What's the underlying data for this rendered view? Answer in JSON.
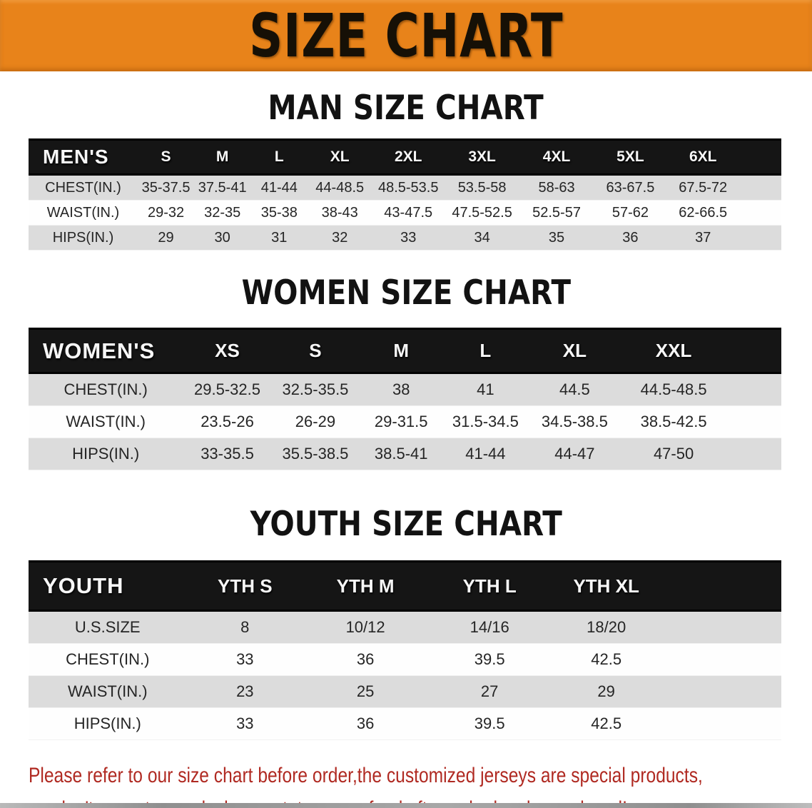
{
  "banner": {
    "title": "SIZE CHART"
  },
  "sections": [
    {
      "heading": "MAN SIZE CHART",
      "table": {
        "header": [
          "MEN'S",
          "S",
          "M",
          "L",
          "XL",
          "2XL",
          "3XL",
          "4XL",
          "5XL",
          "6XL"
        ],
        "rows": [
          {
            "label": "CHEST(IN.)",
            "values": [
              "35-37.5",
              "37.5-41",
              "41-44",
              "44-48.5",
              "48.5-53.5",
              "53.5-58",
              "58-63",
              "63-67.5",
              "67.5-72"
            ]
          },
          {
            "label": "WAIST(IN.)",
            "values": [
              "29-32",
              "32-35",
              "35-38",
              "38-43",
              "43-47.5",
              "47.5-52.5",
              "52.5-57",
              "57-62",
              "62-66.5"
            ]
          },
          {
            "label": "HIPS(IN.)",
            "values": [
              "29",
              "30",
              "31",
              "32",
              "33",
              "34",
              "35",
              "36",
              "37"
            ]
          }
        ]
      }
    },
    {
      "heading": "WOMEN SIZE CHART",
      "table": {
        "header": [
          "WOMEN'S",
          "XS",
          "S",
          "M",
          "L",
          "XL",
          "XXL"
        ],
        "rows": [
          {
            "label": "CHEST(IN.)",
            "values": [
              "29.5-32.5",
              "32.5-35.5",
              "38",
              "41",
              "44.5",
              "44.5-48.5"
            ]
          },
          {
            "label": "WAIST(IN.)",
            "values": [
              "23.5-26",
              "26-29",
              "29-31.5",
              "31.5-34.5",
              "34.5-38.5",
              "38.5-42.5"
            ]
          },
          {
            "label": "HIPS(IN.)",
            "values": [
              "33-35.5",
              "35.5-38.5",
              "38.5-41",
              "41-44",
              "44-47",
              "47-50"
            ]
          }
        ]
      }
    },
    {
      "heading": "YOUTH SIZE CHART",
      "table": {
        "header": [
          "YOUTH",
          "YTH S",
          "YTH M",
          "YTH L",
          "YTH XL"
        ],
        "rows": [
          {
            "label": "U.S.SIZE",
            "values": [
              "8",
              "10/12",
              "14/16",
              "18/20"
            ]
          },
          {
            "label": "CHEST(IN.)",
            "values": [
              "33",
              "36",
              "39.5",
              "42.5"
            ]
          },
          {
            "label": "WAIST(IN.)",
            "values": [
              "23",
              "25",
              "27",
              "29"
            ]
          },
          {
            "label": "HIPS(IN.)",
            "values": [
              "33",
              "36",
              "39.5",
              "42.5"
            ]
          }
        ]
      }
    }
  ],
  "disclaimer": {
    "line1": "Please refer to our size chart before order,the customized jerseys are special products,",
    "line2": "we don't accept cancel, change, teturn or refund after order has been placed!"
  },
  "colors": {
    "banner_orange": "#E8831A",
    "banner_text": "#161006",
    "table_header_bg": "#151515",
    "table_header_text": "#F7F7F7",
    "row_gray": "#DCDCDC",
    "row_white": "#FEFEFE",
    "body_text": "#252525",
    "disclaimer_red": "#B02A22"
  }
}
